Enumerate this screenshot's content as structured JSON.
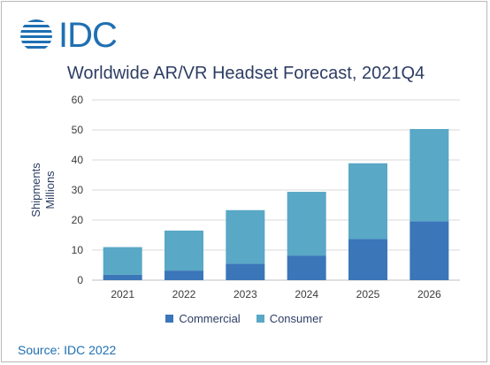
{
  "logo": {
    "text": "IDC"
  },
  "chart_data": {
    "type": "bar",
    "stacked": true,
    "title": "Worldwide AR/VR Headset Forecast, 2021Q4",
    "ylabel_line1": "Shipments",
    "ylabel_line2": "Millions",
    "xlabel": "",
    "categories": [
      "2021",
      "2022",
      "2023",
      "2024",
      "2025",
      "2026"
    ],
    "series": [
      {
        "name": "Commercial",
        "color": "#3a76b8",
        "values": [
          1.8,
          3.2,
          5.5,
          8.2,
          13.7,
          19.6
        ]
      },
      {
        "name": "Consumer",
        "color": "#58a8c6",
        "values": [
          9.2,
          13.3,
          17.8,
          21.2,
          25.2,
          30.7
        ]
      }
    ],
    "ylim": [
      0,
      60
    ],
    "yticks": [
      0,
      10,
      20,
      30,
      40,
      50,
      60
    ],
    "grid": true,
    "legend_position": "bottom"
  },
  "source": "Source: IDC 2022"
}
